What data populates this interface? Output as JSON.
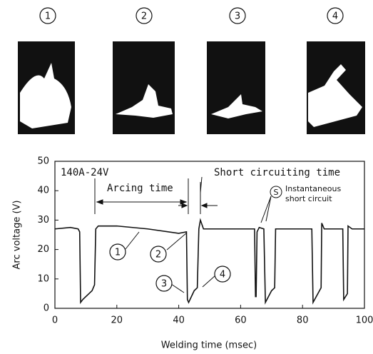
{
  "photos": {
    "labels": [
      "1",
      "2",
      "3",
      "4"
    ]
  },
  "chart_data": {
    "type": "line",
    "xlabel": "Welding time (msec)",
    "ylabel": "Arc voltage (V)",
    "x": [
      0,
      5,
      7.5,
      8,
      8.3,
      9,
      12,
      12.8,
      13.2,
      14,
      20,
      30,
      40,
      42.5,
      42.8,
      43.2,
      45,
      46,
      46.5,
      47,
      48,
      55,
      60,
      64.5,
      64.8,
      65,
      65.3,
      66,
      67.5,
      68,
      70,
      71,
      71.3,
      75,
      83,
      83.4,
      86,
      86.2,
      87,
      93,
      93.3,
      94.5,
      94.7,
      96,
      100
    ],
    "values": [
      27,
      27.5,
      27,
      26,
      2,
      3,
      6,
      8,
      27,
      28,
      28,
      27,
      25.5,
      26,
      3,
      2,
      6,
      7,
      27,
      30,
      27,
      27,
      27,
      27,
      4,
      4,
      26,
      27.5,
      27,
      2,
      6,
      7,
      27,
      27,
      27,
      2,
      7,
      29,
      27,
      27,
      3,
      5,
      28,
      27,
      27
    ],
    "color": "#111111",
    "xlim": [
      0,
      100
    ],
    "xticks": [
      0,
      20,
      40,
      60,
      80,
      100
    ],
    "ylim": [
      0,
      50
    ],
    "yticks": [
      0,
      10,
      20,
      30,
      40,
      50
    ],
    "annotations": {
      "condition": "140A-24V",
      "arcing": "Arcing time",
      "short": "Short circuiting time",
      "s_mark": "S",
      "instant1": "Instantaneous",
      "instant2": "short circuit",
      "points": [
        "1",
        "2",
        "3",
        "4"
      ]
    }
  }
}
